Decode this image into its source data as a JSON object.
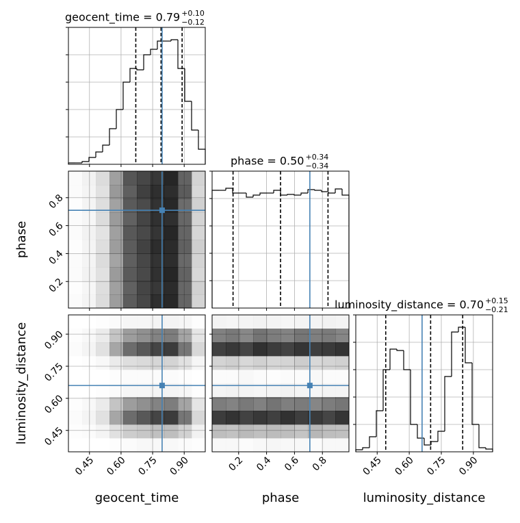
{
  "chart_data": {
    "type": "corner",
    "truth_color": "#4682b4",
    "grid": true,
    "parameters": [
      {
        "label": "geocent_time",
        "title": "geocent_time = 0.79",
        "title_sup": "+0.10",
        "title_sub": "−0.12",
        "lim": [
          0.35,
          1.0
        ],
        "ticks": [
          0.45,
          {
            "value": 0.6,
            "label": "0.60"
          },
          0.75,
          {
            "value": 0.9,
            "label": "0.90"
          }
        ],
        "truth": 0.795,
        "quantiles": [
          0.67,
          0.79,
          0.89
        ],
        "hist": {
          "ylim": [
            0,
            200
          ],
          "yticks": [
            40,
            80,
            120,
            160,
            200
          ],
          "bins": [
            0.35,
            0.3825,
            0.415,
            0.4475,
            0.48,
            0.5125,
            0.545,
            0.5775,
            0.61,
            0.6425,
            0.675,
            0.7075,
            0.74,
            0.7725,
            0.805,
            0.8375,
            0.87,
            0.9025,
            0.935,
            0.9675,
            1.0
          ],
          "values": [
            2,
            2,
            4,
            10,
            18,
            28,
            52,
            80,
            120,
            140,
            138,
            160,
            168,
            180,
            180,
            182,
            140,
            92,
            50,
            22
          ]
        }
      },
      {
        "label": "phase",
        "title": "phase = 0.50",
        "title_sup": "+0.34",
        "title_sub": "−0.34",
        "lim": [
          0.01,
          0.99
        ],
        "ticks": [
          0.2,
          0.4,
          0.6,
          0.8
        ],
        "truth": 0.71,
        "quantiles": [
          0.16,
          0.5,
          0.84
        ],
        "hist": {
          "ylim": [
            0,
            200
          ],
          "yticks": [
            40,
            80,
            120,
            160,
            200
          ],
          "bins": [
            0.01,
            0.059,
            0.108,
            0.157,
            0.206,
            0.255,
            0.304,
            0.353,
            0.402,
            0.451,
            0.5,
            0.549,
            0.598,
            0.647,
            0.696,
            0.745,
            0.794,
            0.843,
            0.892,
            0.941,
            0.99
          ],
          "values": [
            172,
            172,
            175,
            168,
            168,
            162,
            165,
            168,
            168,
            172,
            165,
            166,
            165,
            168,
            173,
            172,
            170,
            168,
            174,
            165
          ]
        }
      },
      {
        "label": "luminosity_distance",
        "title": "luminosity_distance = 0.70",
        "title_sup": "+0.15",
        "title_sub": "−0.21",
        "lim": [
          0.35,
          0.99
        ],
        "ticks": [
          0.45,
          {
            "value": 0.6,
            "label": "0.60"
          },
          0.75,
          {
            "value": 0.9,
            "label": "0.90"
          }
        ],
        "truth": 0.66,
        "quantiles": [
          0.49,
          0.7,
          0.85
        ],
        "hist": {
          "ylim": [
            0,
            200
          ],
          "yticks": [
            40,
            80,
            120,
            160,
            200
          ],
          "bins": [
            0.35,
            0.382,
            0.414,
            0.446,
            0.478,
            0.51,
            0.542,
            0.574,
            0.606,
            0.638,
            0.67,
            0.702,
            0.734,
            0.766,
            0.798,
            0.83,
            0.862,
            0.894,
            0.926,
            0.958,
            0.99
          ],
          "values": [
            3,
            6,
            22,
            60,
            120,
            150,
            148,
            120,
            40,
            20,
            10,
            15,
            30,
            110,
            175,
            182,
            130,
            40,
            6,
            4
          ]
        }
      }
    ],
    "pairs": [
      {
        "x": 0,
        "y": 1,
        "values": [
          [
            0.02,
            0.06,
            0.16,
            0.44,
            0.78,
            0.85,
            0.92,
            1.0,
            0.72,
            0.2
          ],
          [
            0.02,
            0.05,
            0.14,
            0.47,
            0.74,
            0.88,
            0.96,
            0.97,
            0.75,
            0.18
          ],
          [
            0.01,
            0.05,
            0.15,
            0.43,
            0.76,
            0.83,
            0.94,
            0.99,
            0.68,
            0.21
          ],
          [
            0.02,
            0.04,
            0.16,
            0.46,
            0.73,
            0.86,
            0.95,
            0.96,
            0.7,
            0.2
          ],
          [
            0.02,
            0.06,
            0.13,
            0.44,
            0.77,
            0.84,
            0.93,
            1.0,
            0.71,
            0.19
          ],
          [
            0.01,
            0.05,
            0.15,
            0.45,
            0.75,
            0.87,
            0.97,
            0.98,
            0.73,
            0.22
          ],
          [
            0.02,
            0.05,
            0.16,
            0.42,
            0.74,
            0.85,
            0.94,
            0.97,
            0.69,
            0.2
          ],
          [
            0.02,
            0.06,
            0.14,
            0.46,
            0.76,
            0.84,
            0.95,
            1.0,
            0.72,
            0.18
          ],
          [
            0.01,
            0.04,
            0.15,
            0.44,
            0.73,
            0.86,
            0.92,
            0.98,
            0.7,
            0.21
          ],
          [
            0.02,
            0.05,
            0.16,
            0.45,
            0.75,
            0.85,
            0.96,
            0.99,
            0.71,
            0.2
          ]
        ]
      },
      {
        "x": 0,
        "y": 2,
        "values": [
          [
            0,
            0,
            0.01,
            0.02,
            0.04,
            0.04,
            0.05,
            0.05,
            0.04,
            0.01
          ],
          [
            0.01,
            0.03,
            0.09,
            0.27,
            0.45,
            0.51,
            0.57,
            0.6,
            0.42,
            0.12
          ],
          [
            0.02,
            0.05,
            0.14,
            0.41,
            0.68,
            0.77,
            0.86,
            0.9,
            0.63,
            0.18
          ],
          [
            0,
            0.01,
            0.03,
            0.09,
            0.15,
            0.17,
            0.19,
            0.2,
            0.14,
            0.04
          ],
          [
            0,
            0,
            0,
            0.01,
            0.02,
            0.02,
            0.02,
            0.02,
            0.01,
            0
          ],
          [
            0,
            0,
            0.01,
            0.02,
            0.04,
            0.04,
            0.05,
            0.05,
            0.04,
            0.01
          ],
          [
            0.01,
            0.03,
            0.09,
            0.27,
            0.45,
            0.51,
            0.57,
            0.6,
            0.42,
            0.12
          ],
          [
            0.02,
            0.05,
            0.14,
            0.41,
            0.68,
            0.77,
            0.86,
            0.9,
            0.63,
            0.18
          ],
          [
            0.01,
            0.02,
            0.05,
            0.14,
            0.23,
            0.26,
            0.29,
            0.3,
            0.21,
            0.06
          ],
          [
            0,
            0,
            0,
            0.01,
            0.02,
            0.03,
            0.03,
            0.03,
            0.02,
            0.01
          ]
        ]
      },
      {
        "x": 1,
        "y": 2,
        "values": [
          [
            0.05,
            0.04,
            0.05,
            0.06,
            0.05,
            0.04,
            0.05,
            0.05,
            0.06,
            0.05
          ],
          [
            0.58,
            0.62,
            0.55,
            0.64,
            0.6,
            0.57,
            0.63,
            0.59,
            0.61,
            0.56
          ],
          [
            0.88,
            0.92,
            0.86,
            0.95,
            0.9,
            0.87,
            0.93,
            0.89,
            0.91,
            0.94
          ],
          [
            0.2,
            0.22,
            0.18,
            0.21,
            0.19,
            0.2,
            0.23,
            0.18,
            0.2,
            0.21
          ],
          [
            0.02,
            0.02,
            0.03,
            0.02,
            0.01,
            0.02,
            0.02,
            0.03,
            0.02,
            0.02
          ],
          [
            0.05,
            0.06,
            0.05,
            0.04,
            0.05,
            0.06,
            0.05,
            0.04,
            0.05,
            0.05
          ],
          [
            0.6,
            0.57,
            0.62,
            0.58,
            0.64,
            0.59,
            0.61,
            0.56,
            0.6,
            0.63
          ],
          [
            0.9,
            0.94,
            0.87,
            0.92,
            0.88,
            0.95,
            0.89,
            0.91,
            0.86,
            0.93
          ],
          [
            0.3,
            0.28,
            0.32,
            0.29,
            0.31,
            0.3,
            0.27,
            0.33,
            0.3,
            0.29
          ],
          [
            0.03,
            0.03,
            0.02,
            0.03,
            0.04,
            0.03,
            0.03,
            0.02,
            0.03,
            0.03
          ]
        ]
      }
    ]
  }
}
